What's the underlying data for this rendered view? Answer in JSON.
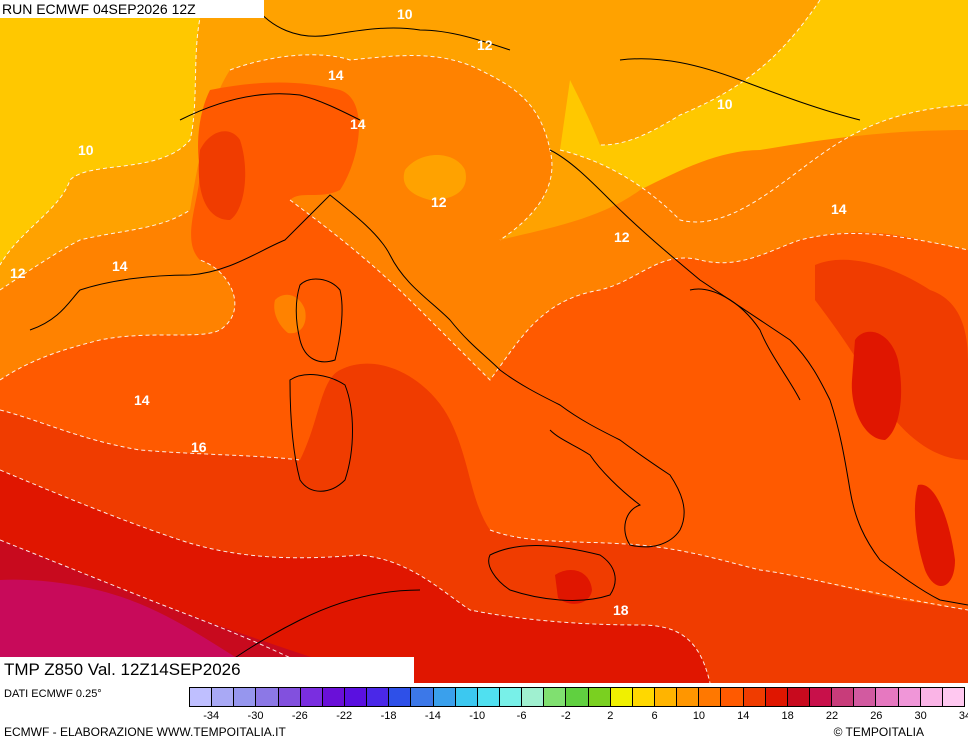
{
  "header": {
    "run": "RUN ECMWF 04SEP2026 12Z"
  },
  "footer_map": {
    "validity": "TMP Z850 Val. 12Z14SEP2026"
  },
  "colors": {
    "c10": "#ffc800",
    "c12": "#ffa200",
    "c14": "#ff8200",
    "c16": "#ff5a00",
    "c18": "#f03c00",
    "c20": "#e01600",
    "c22": "#c80a1e",
    "c24": "#c80a5a"
  },
  "contour_labels": [
    {
      "text": "10",
      "id": "10-nw"
    },
    {
      "text": "10",
      "id": "10-top"
    },
    {
      "text": "10",
      "id": "10-ne"
    },
    {
      "text": "12",
      "id": "12-alps"
    },
    {
      "text": "12",
      "id": "12-w"
    },
    {
      "text": "12",
      "id": "12-po"
    },
    {
      "text": "12",
      "id": "12-adriatic"
    },
    {
      "text": "14",
      "id": "14-alps"
    },
    {
      "text": "14",
      "id": "14-lombardy"
    },
    {
      "text": "14",
      "id": "14-gulf"
    },
    {
      "text": "14",
      "id": "14-balkans"
    },
    {
      "text": "14",
      "id": "14-sea"
    },
    {
      "text": "16",
      "id": "16-sea"
    },
    {
      "text": "18",
      "id": "18-ionian"
    }
  ],
  "legend": {
    "source": "DATI ECMWF 0.25°",
    "swatches": [
      "#bfbfff",
      "#a9a9f5",
      "#9696ee",
      "#8c78e6",
      "#8250de",
      "#7a2ee0",
      "#6a10d8",
      "#5a10e0",
      "#4a28e8",
      "#2e50e8",
      "#3c78e8",
      "#3aa0ec",
      "#3cc8f0",
      "#50e0f0",
      "#78f0e8",
      "#a0f0d0",
      "#80e070",
      "#60d040",
      "#7ad020",
      "#f0f000",
      "#ffd800",
      "#ffb400",
      "#ff9600",
      "#ff7800",
      "#ff5a00",
      "#f03c00",
      "#e01600",
      "#c80a1e",
      "#c8104a",
      "#c83c7a",
      "#d25aa0",
      "#e678c0",
      "#f096d8",
      "#fab4e6",
      "#ffc8f0"
    ],
    "ticks": [
      "-34",
      "-30",
      "-26",
      "-22",
      "-18",
      "-14",
      "-10",
      "-6",
      "-2",
      "2",
      "6",
      "10",
      "14",
      "18",
      "22",
      "26",
      "30",
      "34"
    ]
  },
  "credits": {
    "left": "ECMWF - ELABORAZIONE WWW.TEMPOITALIA.IT",
    "right": "© TEMPOITALIA"
  }
}
